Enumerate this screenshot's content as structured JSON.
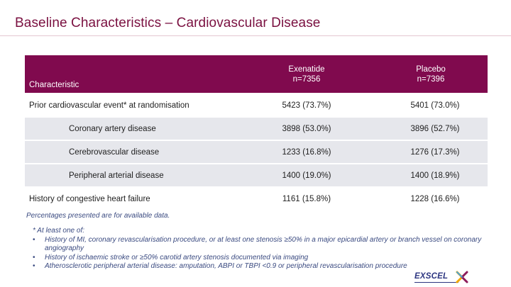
{
  "title": "Baseline Characteristics – Cardiovascular Disease",
  "table": {
    "headers": {
      "characteristic": "Characteristic",
      "exenatide_name": "Exenatide",
      "exenatide_n": "n=7356",
      "placebo_name": "Placebo",
      "placebo_n": "n=7396"
    },
    "rows": [
      {
        "label": "Prior cardiovascular event* at randomisation",
        "exenatide": "5423 (73.7%)",
        "placebo": "5401 (73.0%)"
      },
      {
        "label": "Coronary artery disease",
        "exenatide": "3898 (53.0%)",
        "placebo": "3896 (52.7%)"
      },
      {
        "label": "Cerebrovascular disease",
        "exenatide": "1233 (16.8%)",
        "placebo": "1276 (17.3%)"
      },
      {
        "label": "Peripheral arterial disease",
        "exenatide": "1400 (19.0%)",
        "placebo": "1400 (18.9%)"
      },
      {
        "label": "History of congestive heart failure",
        "exenatide": "1161 (15.8%)",
        "placebo": "1228 (16.6%)"
      }
    ]
  },
  "note": "Percentages presented are for available data.",
  "footnote": {
    "intro": "* At least one of:",
    "bullet_glyph": "•",
    "items": [
      "History of MI, coronary revascularisation procedure, or at least one stenosis ≥50% in a major epicardial artery or branch vessel on coronary angiography",
      "History of ischaemic stroke or ≥50% carotid artery stenosis documented via imaging",
      "Atherosclerotic peripheral arterial disease: amputation, ABPI or TBPI <0.9 or peripheral revascularisation procedure"
    ]
  },
  "logo": {
    "text": "EXSCEL"
  },
  "colors": {
    "title": "#7a1040",
    "header_bg": "#800a4e",
    "row_shade": "#e6e7ec",
    "footnote": "#3a4a80",
    "logo": "#2c3580"
  }
}
